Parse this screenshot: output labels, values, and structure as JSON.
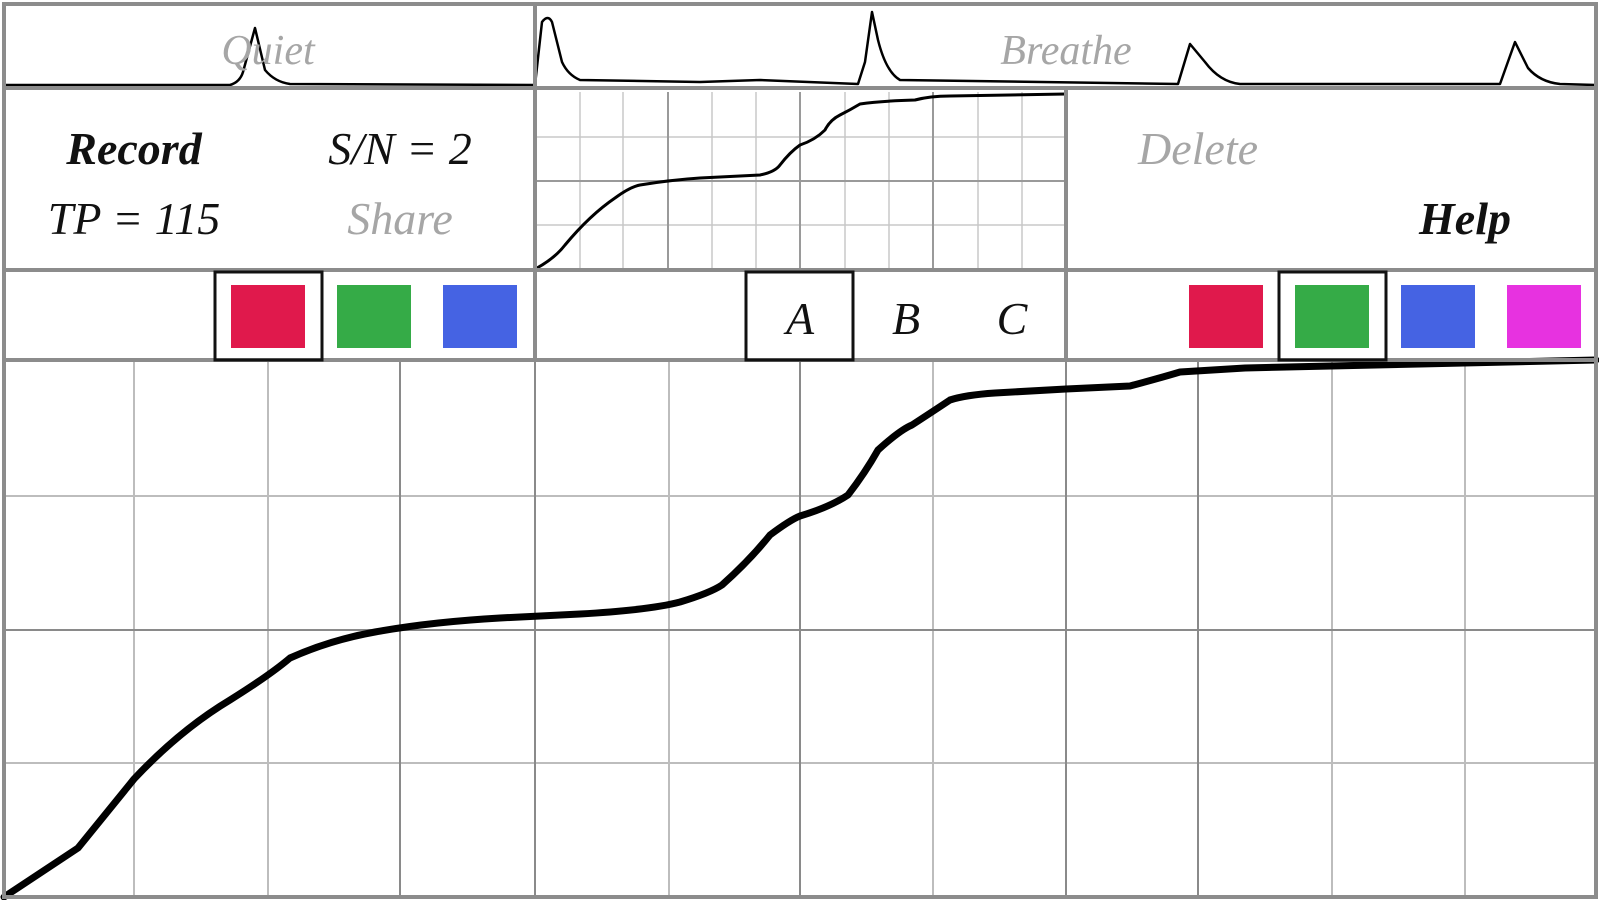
{
  "top_strip": {
    "left_label": "Quiet",
    "right_label": "Breathe"
  },
  "info_panel": {
    "record_label": "Record",
    "sn_label": "S/N = 2",
    "tp_label": "TP = 115",
    "share_label": "Share"
  },
  "right_panel": {
    "delete_label": "Delete",
    "help_label": "Help"
  },
  "swatches_left": [
    {
      "name": "red",
      "color": "#e0194c",
      "selected": true
    },
    {
      "name": "green",
      "color": "#35ab47",
      "selected": false
    },
    {
      "name": "blue",
      "color": "#4563e3",
      "selected": false
    }
  ],
  "channel_tabs": [
    {
      "label": "A",
      "selected": true
    },
    {
      "label": "B",
      "selected": false
    },
    {
      "label": "C",
      "selected": false
    }
  ],
  "swatches_right": [
    {
      "name": "red",
      "color": "#e0194c",
      "selected": false
    },
    {
      "name": "green",
      "color": "#35ab47",
      "selected": true
    },
    {
      "name": "blue",
      "color": "#4563e3",
      "selected": false
    },
    {
      "name": "magenta",
      "color": "#e732e0",
      "selected": false
    }
  ]
}
